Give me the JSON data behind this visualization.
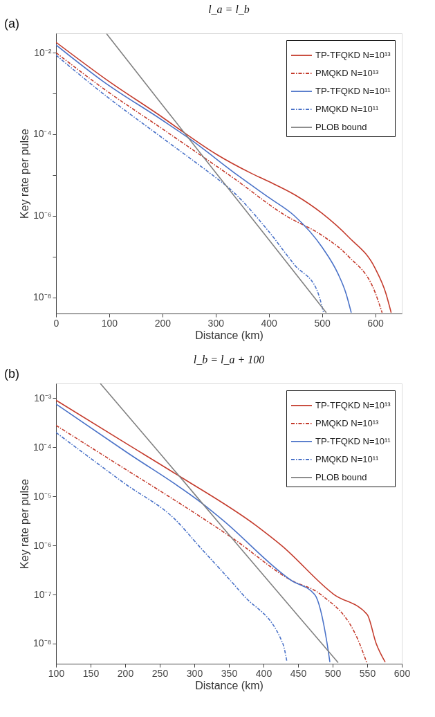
{
  "chart_data": [
    {
      "type": "line",
      "title": "l_a = l_b",
      "xlabel": "Distance (km)",
      "ylabel": "Key rate per pulse",
      "log": "y",
      "grid": false,
      "legend": "top right",
      "xlim": [
        0,
        650
      ],
      "xticks": [
        0,
        100,
        200,
        300,
        400,
        500,
        600
      ],
      "ylim": [
        4e-09,
        0.03
      ],
      "yticks": [
        {
          "value": 1e-08,
          "label": "10⁻⁸"
        },
        {
          "value": 1e-07,
          "label": null
        },
        {
          "value": 1e-06,
          "label": "10⁻⁶"
        },
        {
          "value": 1e-05,
          "label": null
        },
        {
          "value": 0.0001,
          "label": "10⁻⁴"
        },
        {
          "value": 0.001,
          "label": null
        },
        {
          "value": 0.01,
          "label": "10⁻²"
        }
      ],
      "annotations": [
        "(a)"
      ],
      "series": [
        {
          "name": "TP-TFQKD N=10¹³",
          "color": "#c43b2c",
          "line_style": "solid",
          "x": [
            0,
            100,
            200,
            234,
            300,
            367,
            400,
            450,
            500,
            550,
            600,
            620,
            630
          ],
          "values": [
            0.018,
            0.00195,
            0.00026,
            0.000126,
            3.3e-05,
            1.1e-05,
            6.9e-06,
            3.2e-06,
            1.15e-06,
            3e-07,
            5.1e-08,
            1.26e-08,
            4.2e-09
          ]
        },
        {
          "name": "PMQKD N=10¹³",
          "color": "#c43b2c",
          "line_style": "dashdot",
          "x": [
            0,
            88,
            200,
            276,
            331,
            432,
            500,
            550,
            600,
            613
          ],
          "values": [
            0.01,
            0.00135,
            0.000135,
            2.8e-05,
            8.9e-06,
            1e-06,
            3.3e-07,
            1e-07,
            1.3e-08,
            4.2e-09
          ]
        },
        {
          "name": "TP-TFQKD N=10¹¹",
          "color": "#4a72c8",
          "line_style": "solid",
          "x": [
            0,
            88,
            200,
            250,
            344,
            400,
            448,
            500,
            530,
            545,
            555
          ],
          "values": [
            0.0155,
            0.002,
            0.00022,
            7.9e-05,
            9.3e-06,
            2.8e-06,
            1e-06,
            1.7e-07,
            3.8e-08,
            1.26e-08,
            4.2e-09
          ]
        },
        {
          "name": "PMQKD N=10¹¹",
          "color": "#4a72c8",
          "line_style": "dashdot",
          "x": [
            0,
            88,
            200,
            297,
            325,
            400,
            450,
            490,
            503
          ],
          "values": [
            0.0087,
            0.001,
            8.1e-05,
            9.3e-06,
            4.8e-06,
            4.1e-07,
            5.9e-08,
            1.55e-08,
            4.2e-09
          ]
        },
        {
          "name": "PLOB bound",
          "color": "#808080",
          "line_style": "solid",
          "x": [
            95,
            200,
            300,
            400,
            508
          ],
          "values": [
            0.029,
            0.00052,
            1.15e-05,
            2.6e-07,
            4.2e-09
          ]
        }
      ]
    },
    {
      "type": "line",
      "title": "l_b = l_a + 100",
      "xlabel": "Distance (km)",
      "ylabel": "Key rate per pulse",
      "log": "y",
      "grid": false,
      "legend": "top right",
      "xlim": [
        100,
        600
      ],
      "xticks": [
        100,
        150,
        200,
        250,
        300,
        350,
        400,
        450,
        500,
        550,
        600
      ],
      "ylim": [
        3.9e-09,
        0.002
      ],
      "yticks": [
        {
          "value": 1e-08,
          "label": "10⁻⁸"
        },
        {
          "value": 1e-07,
          "label": "10⁻⁷"
        },
        {
          "value": 1e-06,
          "label": "10⁻⁶"
        },
        {
          "value": 1e-05,
          "label": "10⁻⁵"
        },
        {
          "value": 0.0001,
          "label": "10⁻⁴"
        },
        {
          "value": 0.001,
          "label": "10⁻³"
        }
      ],
      "annotations": [
        "(b)"
      ],
      "series": [
        {
          "name": "TP-TFQKD N=10¹³",
          "color": "#c43b2c",
          "line_style": "solid",
          "x": [
            100,
            200,
            278,
            390,
            426,
            502,
            550,
            563,
            576
          ],
          "values": [
            0.00091,
            0.000123,
            2.6e-05,
            2.5e-06,
            1e-06,
            1e-07,
            3.9e-08,
            1e-08,
            4.2e-09
          ]
        },
        {
          "name": "PMQKD N=10¹³",
          "color": "#c43b2c",
          "line_style": "dashdot",
          "x": [
            100,
            200,
            263,
            329,
            354,
            440,
            483,
            539,
            549
          ],
          "values": [
            0.00028,
            3.6e-05,
            1e-05,
            2.5e-06,
            1.45e-06,
            1.95e-07,
            1e-07,
            1e-08,
            4.2e-09
          ]
        },
        {
          "name": "TP-TFQKD N=10¹¹",
          "color": "#4a72c8",
          "line_style": "solid",
          "x": [
            100,
            200,
            313,
            341,
            440,
            474,
            492,
            496
          ],
          "values": [
            0.00076,
            8.3e-05,
            6.9e-06,
            3.3e-06,
            1.95e-07,
            1e-07,
            1e-08,
            4.2e-09
          ]
        },
        {
          "name": "PMQKD N=10¹¹",
          "color": "#4a72c8",
          "line_style": "dashdot",
          "x": [
            100,
            200,
            273,
            306,
            370,
            428,
            434
          ],
          "values": [
            0.0002,
            1.8e-05,
            3.3e-06,
            1e-06,
            1e-07,
            1e-08,
            4.2e-09
          ]
        },
        {
          "name": "PLOB bound",
          "color": "#808080",
          "line_style": "solid",
          "x": [
            164,
            250,
            350,
            450,
            508
          ],
          "values": [
            0.002,
            7.6e-05,
            1.66e-06,
            3.7e-08,
            4.1e-09
          ]
        }
      ]
    }
  ]
}
